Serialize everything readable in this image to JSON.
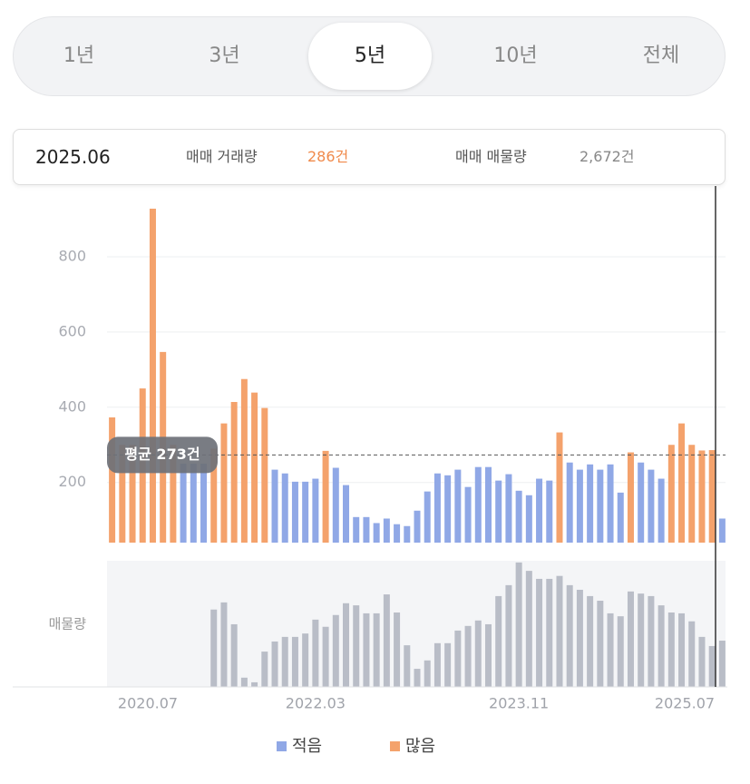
{
  "tabs": {
    "items": [
      "1년",
      "3년",
      "5년",
      "10년",
      "전체"
    ],
    "selected": 2
  },
  "info": {
    "date": "2025.06",
    "trade_label": "매매 거래량",
    "trade_value": "286건",
    "listing_label": "매매 매물량",
    "listing_value": "2,672건"
  },
  "chart_data": [
    {
      "type": "bar",
      "categories": [
        "2020.07",
        null,
        null,
        null,
        null,
        null,
        null,
        null,
        null,
        null,
        null,
        null,
        null,
        null,
        null,
        null,
        null,
        null,
        null,
        null,
        "2022.03",
        null,
        null,
        null,
        null,
        null,
        null,
        null,
        null,
        null,
        null,
        null,
        null,
        null,
        null,
        null,
        null,
        null,
        null,
        null,
        "2023.11",
        null,
        null,
        null,
        null,
        null,
        null,
        null,
        null,
        null,
        null,
        null,
        null,
        null,
        null,
        null,
        null,
        null,
        null,
        null,
        "2025.07"
      ],
      "values": [
        373,
        300,
        300,
        450,
        928,
        547,
        300,
        250,
        250,
        250,
        290,
        357,
        414,
        475,
        439,
        398,
        234,
        224,
        202,
        202,
        210,
        284,
        239,
        193,
        108,
        108,
        92,
        104,
        89,
        84,
        125,
        176,
        224,
        219,
        234,
        188,
        241,
        241,
        205,
        222,
        178,
        166,
        210,
        205,
        333,
        253,
        234,
        248,
        234,
        248,
        173,
        280,
        253,
        234,
        210,
        300,
        357,
        300,
        285,
        286,
        104
      ],
      "average": 273,
      "average_label": "평균 273건",
      "legend": [
        {
          "name": "적음",
          "color": "#90a8e6"
        },
        {
          "name": "많음",
          "color": "#f4a26c"
        }
      ],
      "ylim": [
        40,
        940
      ],
      "yticks": [
        200,
        400,
        600,
        800
      ],
      "grid": true
    },
    {
      "type": "bar",
      "label": "매물량",
      "color": "#b9bdc7",
      "values": [
        null,
        null,
        null,
        null,
        null,
        null,
        null,
        null,
        null,
        null,
        3540,
        3710,
        3190,
        1920,
        1810,
        2540,
        2780,
        2890,
        2890,
        2970,
        3300,
        3130,
        3410,
        3690,
        3640,
        3450,
        3450,
        3900,
        3470,
        2690,
        2130,
        2330,
        2740,
        2740,
        3040,
        3150,
        3280,
        3190,
        3860,
        4120,
        4660,
        4460,
        4270,
        4270,
        4340,
        4120,
        4010,
        3860,
        3750,
        3450,
        3380,
        3970,
        3920,
        3860,
        3640,
        3470,
        3450,
        3260,
        2890,
        2672,
        2800
      ],
      "ylim": [
        1700,
        4700
      ]
    }
  ]
}
